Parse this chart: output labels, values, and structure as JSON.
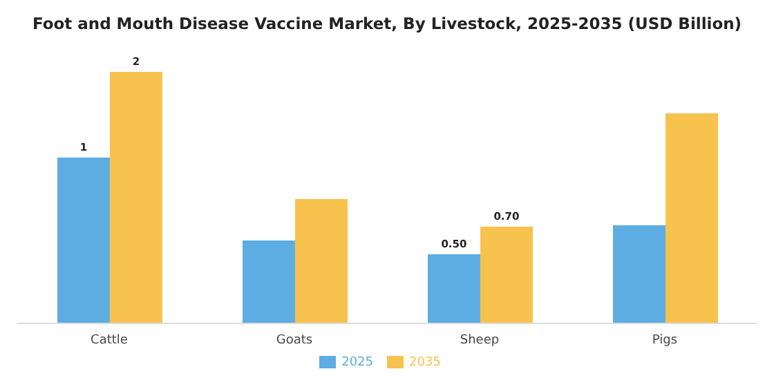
{
  "chart_data": {
    "type": "bar",
    "title": "Foot and Mouth Disease Vaccine Market, By Livestock, 2025-2035 (USD Billion)",
    "categories": [
      "Cattle",
      "Goats",
      "Sheep",
      "Pigs"
    ],
    "series": [
      {
        "name": "2025",
        "color": "#5dade2",
        "values": [
          1.2,
          0.6,
          0.5,
          0.71
        ],
        "value_labels": [
          "1",
          null,
          "0.50",
          null
        ]
      },
      {
        "name": "2035",
        "color": "#f8c24e",
        "values": [
          1.82,
          0.9,
          0.7,
          1.52
        ],
        "value_labels": [
          "2",
          null,
          "0.70",
          null
        ]
      }
    ],
    "legend": "bottom",
    "grid": false
  }
}
